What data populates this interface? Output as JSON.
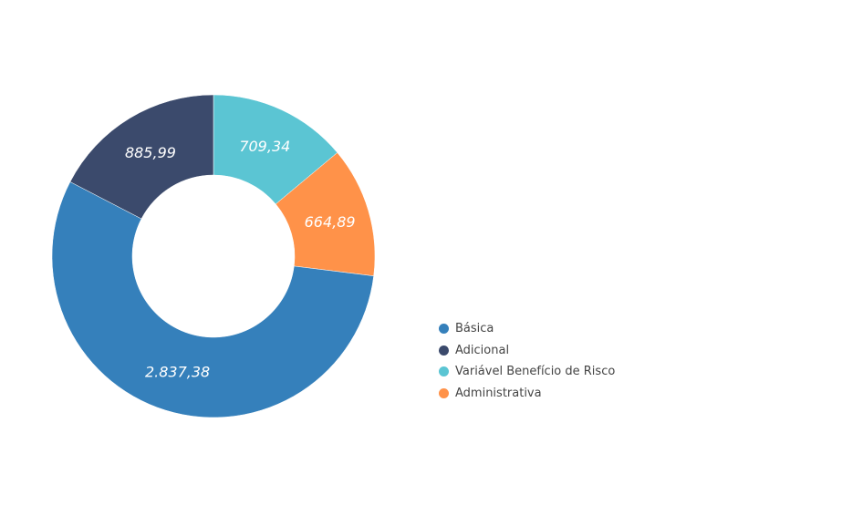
{
  "chart_data": {
    "type": "pie",
    "donut": true,
    "legend_position": "right",
    "categories": [
      "Básica",
      "Adicional",
      "Variável Benefício de Risco",
      "Administrativa"
    ],
    "values": [
      2837.38,
      885.99,
      709.34,
      664.89
    ],
    "value_labels": [
      "2.837,38",
      "885,99",
      "709,34",
      "664,89"
    ],
    "colors": [
      "#3580bb",
      "#3b4a6c",
      "#5bc5d3",
      "#ff9249"
    ]
  }
}
